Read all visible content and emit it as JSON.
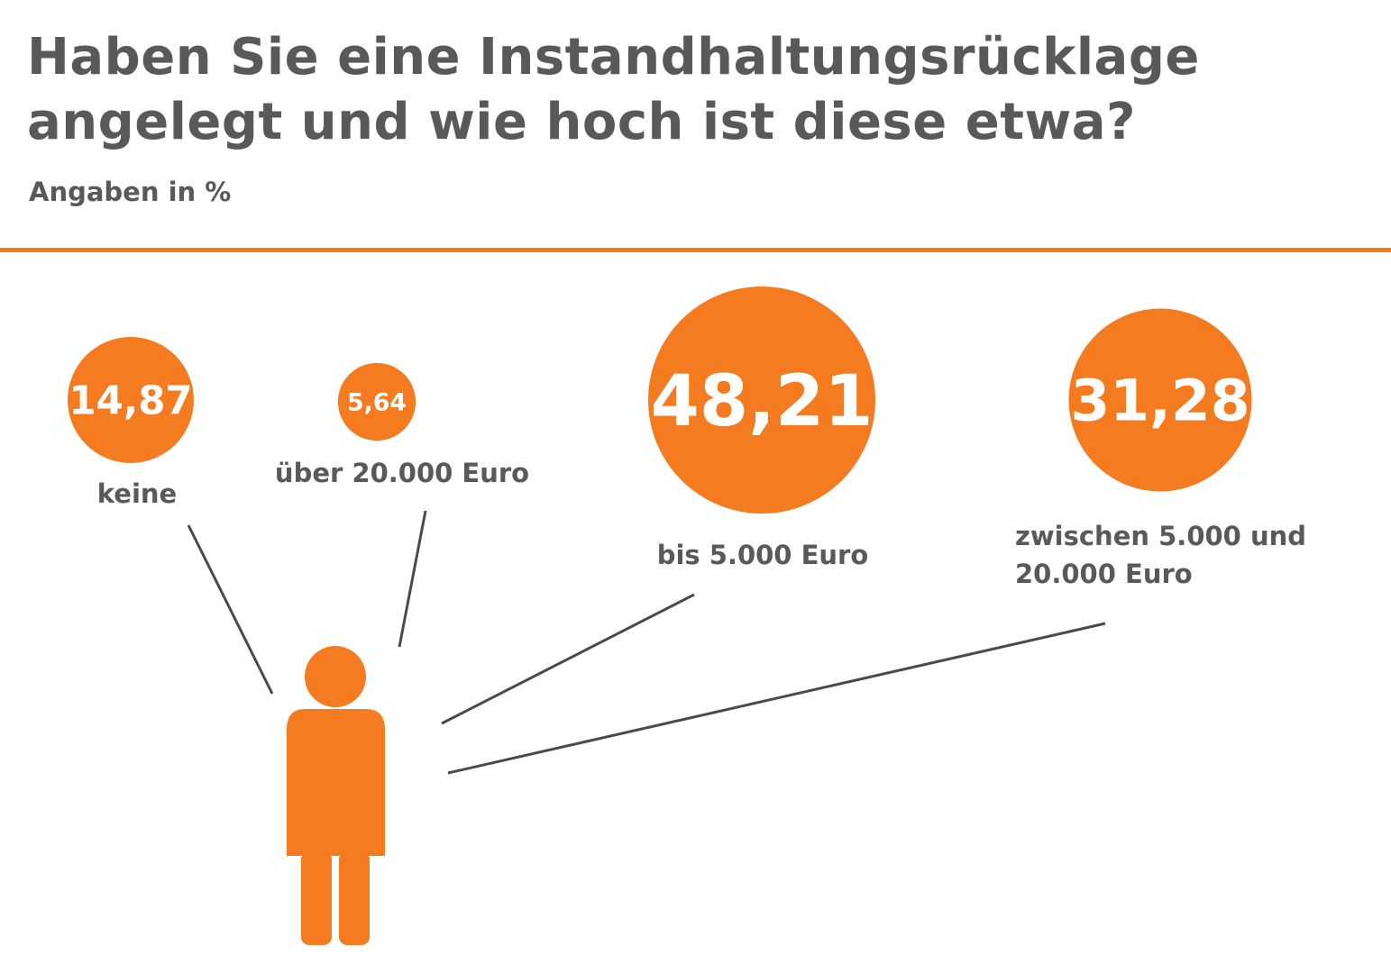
{
  "title": "Haben Sie eine Instandhaltungsrücklage angelegt und wie hoch ist diese etwa?",
  "subtitle": "Angaben in %",
  "colors": {
    "accent": "#f47b20",
    "text": "#58595b",
    "line": "#4a4a4a"
  },
  "icon": "person-icon",
  "chart_data": {
    "type": "bubble",
    "title": "Haben Sie eine Instandhaltungsrücklage angelegt und wie hoch ist diese etwa?",
    "subtitle": "Angaben in %",
    "categories": [
      "keine",
      "über 20.000 Euro",
      "bis 5.000 Euro",
      "zwischen 5.000 und 20.000 Euro"
    ],
    "values": [
      14.87,
      5.64,
      48.21,
      31.28
    ],
    "value_labels": [
      "14,87",
      "5,64",
      "48,21",
      "31,28"
    ],
    "label_lines": [
      [
        "keine"
      ],
      [
        "über 20.000 Euro"
      ],
      [
        "bis 5.000 Euro"
      ],
      [
        "zwischen 5.000 und",
        "20.000 Euro"
      ]
    ]
  }
}
